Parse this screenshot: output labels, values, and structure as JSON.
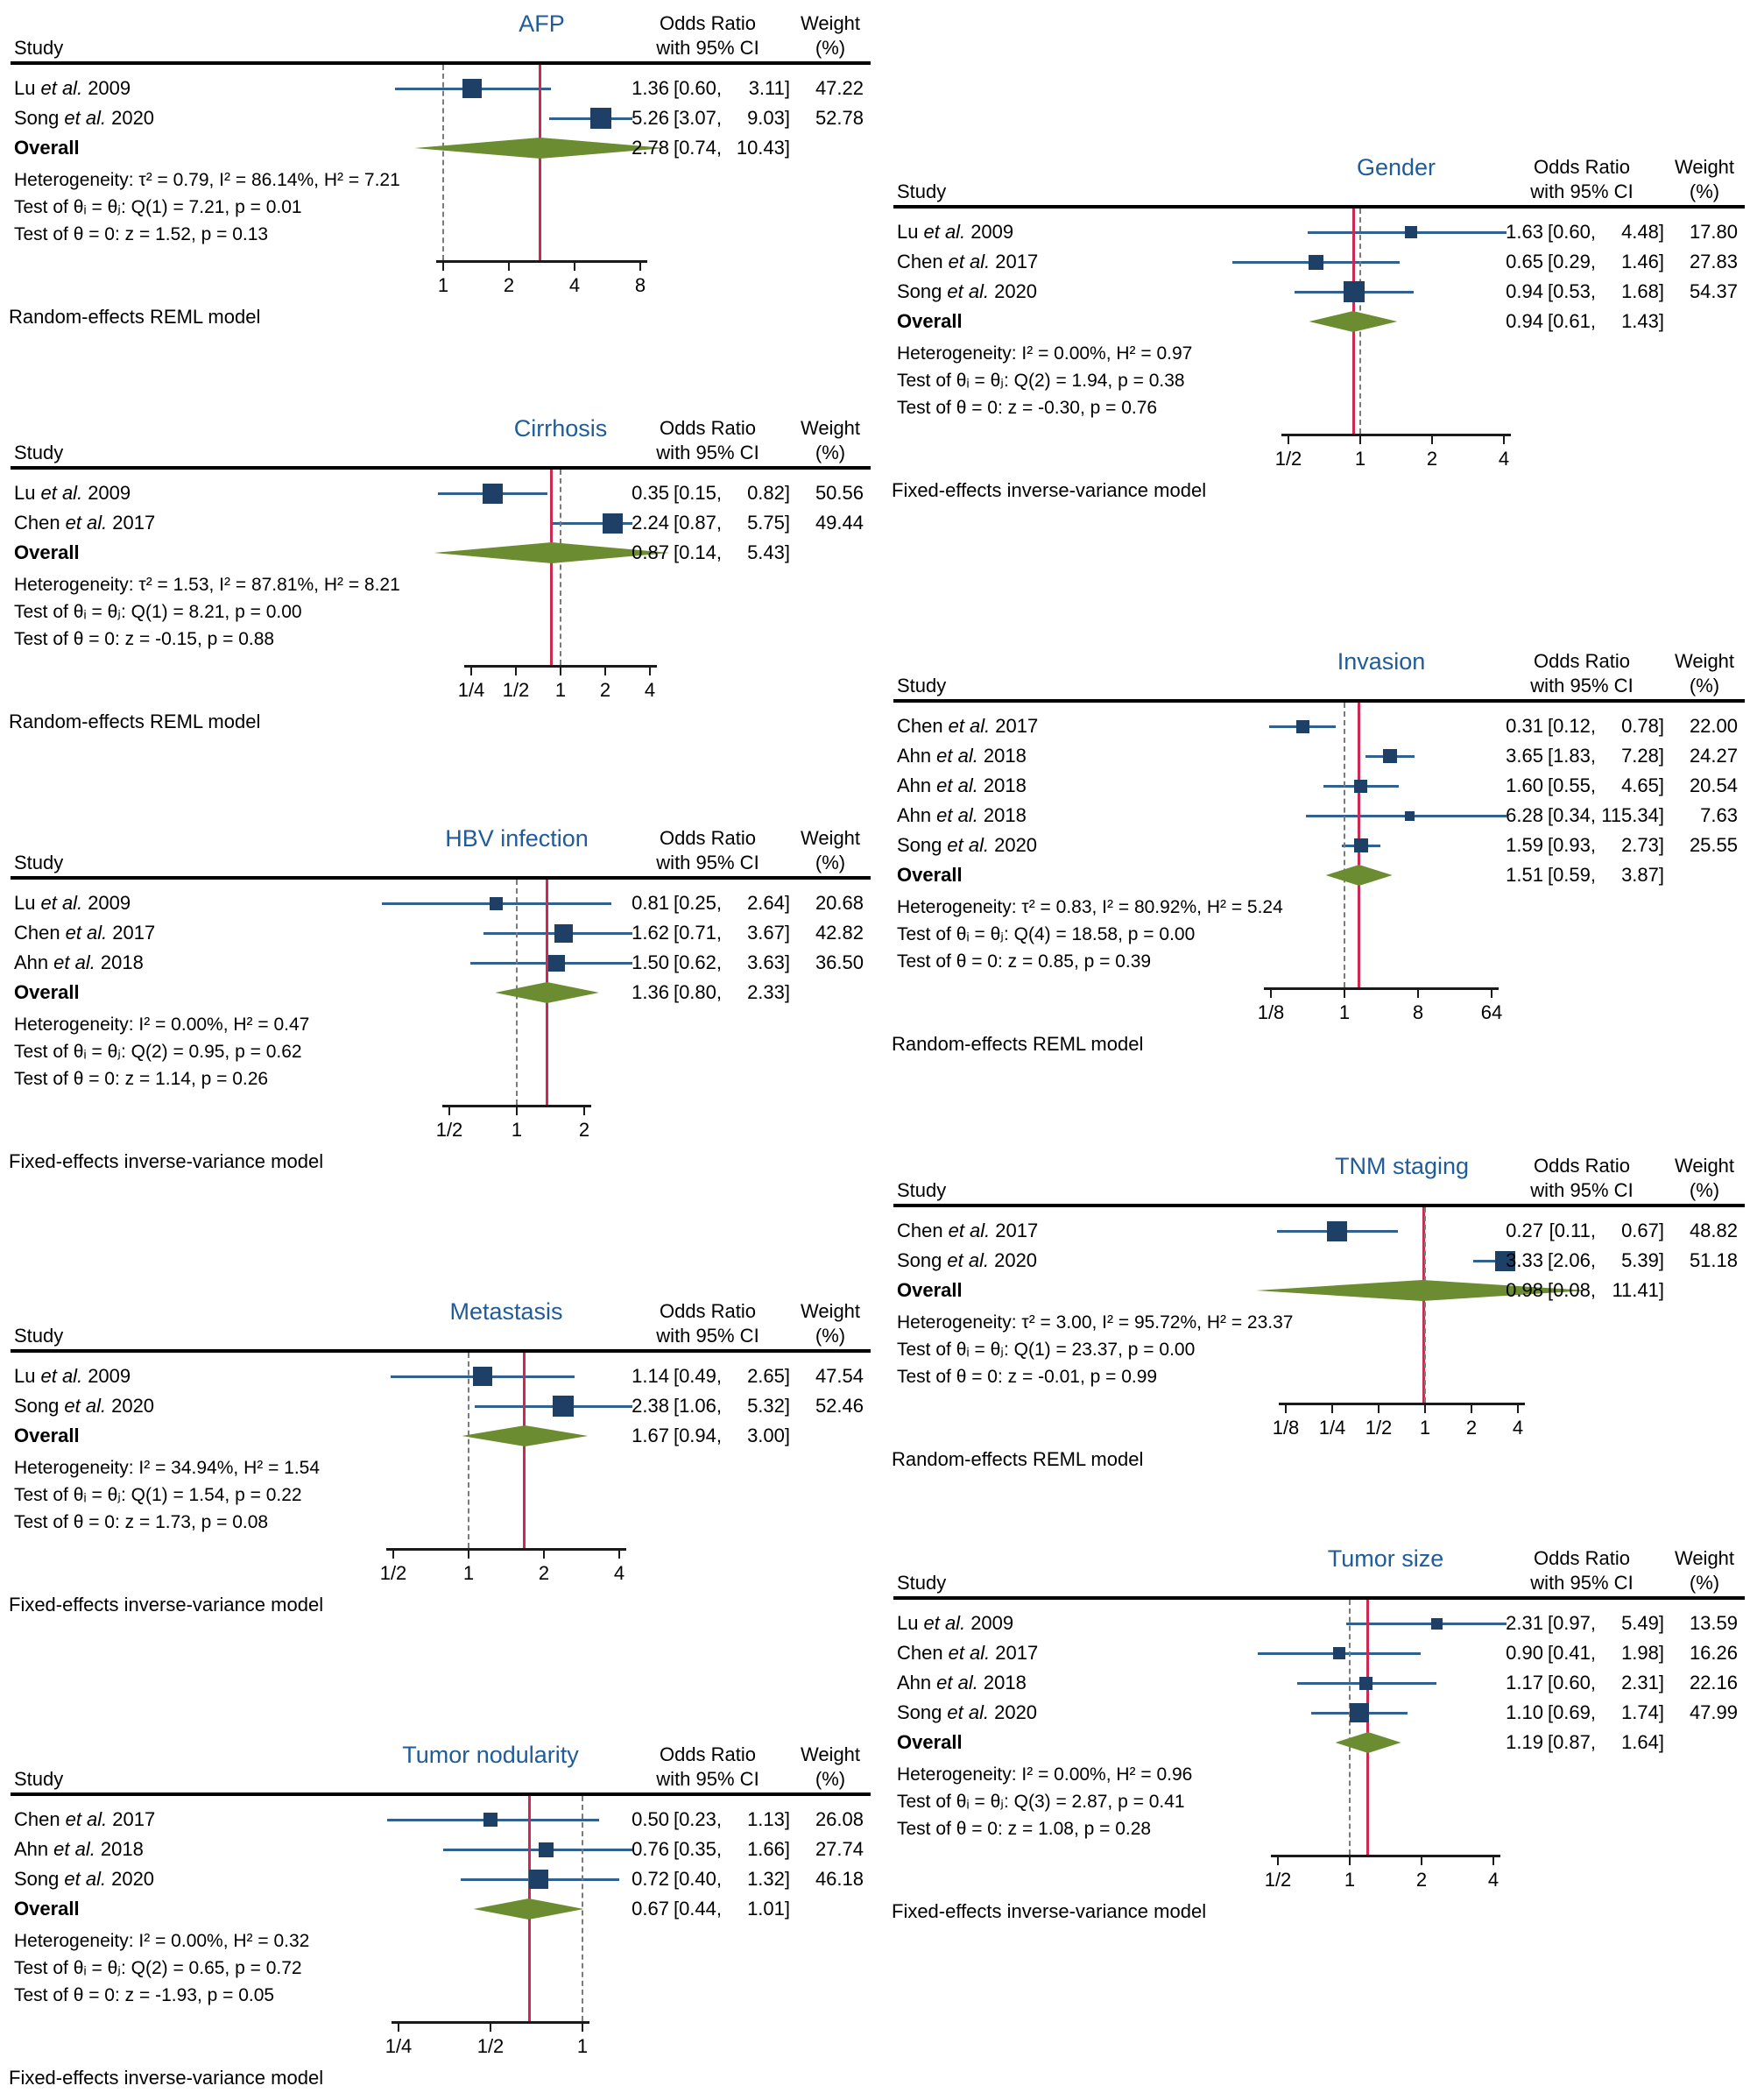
{
  "figure": {
    "description": "Forest plots of meta-analysis results for nine clinicopathological factors",
    "background": "#ffffff"
  },
  "colors": {
    "title": "#1f5c99",
    "marker": "#1e4066",
    "ci_line": "#31618f",
    "diamond": "#6b8c31",
    "effect_line": "#cc2a52",
    "null_line": "#7b7b7b",
    "text": "#000000"
  },
  "labels": {
    "study_header": "Study",
    "etal": "et al.",
    "or_header1": "Odds Ratio",
    "or_header2": "with 95% CI",
    "weight_header1": "Weight",
    "weight_header2": "(%)"
  },
  "chart_data": [
    {
      "id": "afp",
      "type": "forest",
      "title": "AFP",
      "model": "Random-effects REML model",
      "effect": 2.78,
      "axis": {
        "scale": "log",
        "ticks": [
          {
            "label": "1",
            "v": 1
          },
          {
            "label": "2",
            "v": 2
          },
          {
            "label": "4",
            "v": 4
          },
          {
            "label": "8",
            "v": 8
          }
        ]
      },
      "studies": [
        {
          "author": "Lu",
          "year": "2009",
          "or_v": 1.36,
          "lo_v": 0.6,
          "hi_v": 3.11,
          "or": "1.36",
          "lo": "[0.60,",
          "hi": "3.11]",
          "weight": "47.22"
        },
        {
          "author": "Song",
          "year": "2020",
          "or_v": 5.26,
          "lo_v": 3.07,
          "hi_v": 9.03,
          "or": "5.26",
          "lo": "[3.07,",
          "hi": "9.03]",
          "weight": "52.78"
        }
      ],
      "overall": {
        "label": "Overall",
        "or_v": 2.78,
        "lo_v": 0.74,
        "hi_v": 10.43,
        "or": "2.78",
        "lo": "[0.74,",
        "hi": "10.43]"
      },
      "stats": [
        "Heterogeneity: τ² = 0.79, I² = 86.14%, H² = 7.21",
        "Test of θᵢ = θⱼ: Q(1) = 7.21, p = 0.01",
        "Test of θ = 0: z = 1.52, p = 0.13"
      ]
    },
    {
      "id": "cirrhosis",
      "type": "forest",
      "title": "Cirrhosis",
      "model": "Random-effects REML model",
      "effect": 0.87,
      "axis": {
        "scale": "log",
        "ticks": [
          {
            "label": "1/4",
            "v": 0.25
          },
          {
            "label": "1/2",
            "v": 0.5
          },
          {
            "label": "1",
            "v": 1
          },
          {
            "label": "2",
            "v": 2
          },
          {
            "label": "4",
            "v": 4
          }
        ]
      },
      "studies": [
        {
          "author": "Lu",
          "year": "2009",
          "or_v": 0.35,
          "lo_v": 0.15,
          "hi_v": 0.82,
          "or": "0.35",
          "lo": "[0.15,",
          "hi": "0.82]",
          "weight": "50.56"
        },
        {
          "author": "Chen",
          "year": "2017",
          "or_v": 2.24,
          "lo_v": 0.87,
          "hi_v": 5.75,
          "or": "2.24",
          "lo": "[0.87,",
          "hi": "5.75]",
          "weight": "49.44"
        }
      ],
      "overall": {
        "label": "Overall",
        "or_v": 0.87,
        "lo_v": 0.14,
        "hi_v": 5.43,
        "or": "0.87",
        "lo": "[0.14,",
        "hi": "5.43]"
      },
      "stats": [
        "Heterogeneity: τ² = 1.53, I² = 87.81%, H² = 8.21",
        "Test of θᵢ = θⱼ: Q(1) = 8.21, p = 0.00",
        "Test of θ = 0: z = -0.15, p = 0.88"
      ]
    },
    {
      "id": "hbv",
      "type": "forest",
      "title": "HBV infection",
      "model": "Fixed-effects inverse-variance model",
      "effect": 1.36,
      "axis": {
        "scale": "log",
        "ticks": [
          {
            "label": "1/2",
            "v": 0.5
          },
          {
            "label": "1",
            "v": 1
          },
          {
            "label": "2",
            "v": 2
          }
        ]
      },
      "studies": [
        {
          "author": "Lu",
          "year": "2009",
          "or_v": 0.81,
          "lo_v": 0.25,
          "hi_v": 2.64,
          "or": "0.81",
          "lo": "[0.25,",
          "hi": "2.64]",
          "weight": "20.68"
        },
        {
          "author": "Chen",
          "year": "2017",
          "or_v": 1.62,
          "lo_v": 0.71,
          "hi_v": 3.67,
          "or": "1.62",
          "lo": "[0.71,",
          "hi": "3.67]",
          "weight": "42.82"
        },
        {
          "author": "Ahn",
          "year": "2018",
          "or_v": 1.5,
          "lo_v": 0.62,
          "hi_v": 3.63,
          "or": "1.50",
          "lo": "[0.62,",
          "hi": "3.63]",
          "weight": "36.50"
        }
      ],
      "overall": {
        "label": "Overall",
        "or_v": 1.36,
        "lo_v": 0.8,
        "hi_v": 2.33,
        "or": "1.36",
        "lo": "[0.80,",
        "hi": "2.33]"
      },
      "stats": [
        "Heterogeneity: I² = 0.00%, H² = 0.47",
        "Test of θᵢ = θⱼ: Q(2) = 0.95, p = 0.62",
        "Test of θ = 0: z = 1.14, p = 0.26"
      ]
    },
    {
      "id": "metastasis",
      "type": "forest",
      "title": "Metastasis",
      "model": "Fixed-effects inverse-variance model",
      "effect": 1.67,
      "axis": {
        "scale": "log",
        "ticks": [
          {
            "label": "1/2",
            "v": 0.5
          },
          {
            "label": "1",
            "v": 1
          },
          {
            "label": "2",
            "v": 2
          },
          {
            "label": "4",
            "v": 4
          }
        ]
      },
      "studies": [
        {
          "author": "Lu",
          "year": "2009",
          "or_v": 1.14,
          "lo_v": 0.49,
          "hi_v": 2.65,
          "or": "1.14",
          "lo": "[0.49,",
          "hi": "2.65]",
          "weight": "47.54"
        },
        {
          "author": "Song",
          "year": "2020",
          "or_v": 2.38,
          "lo_v": 1.06,
          "hi_v": 5.32,
          "or": "2.38",
          "lo": "[1.06,",
          "hi": "5.32]",
          "weight": "52.46"
        }
      ],
      "overall": {
        "label": "Overall",
        "or_v": 1.67,
        "lo_v": 0.94,
        "hi_v": 3.0,
        "or": "1.67",
        "lo": "[0.94,",
        "hi": "3.00]"
      },
      "stats": [
        "Heterogeneity: I² = 34.94%, H² = 1.54",
        "Test of θᵢ = θⱼ: Q(1) = 1.54, p = 0.22",
        "Test of θ = 0: z = 1.73, p = 0.08"
      ]
    },
    {
      "id": "nodularity",
      "type": "forest",
      "title": "Tumor nodularity",
      "model": "Fixed-effects inverse-variance model",
      "effect": 0.67,
      "axis": {
        "scale": "log",
        "ticks": [
          {
            "label": "1/4",
            "v": 0.25
          },
          {
            "label": "1/2",
            "v": 0.5
          },
          {
            "label": "1",
            "v": 1
          }
        ]
      },
      "studies": [
        {
          "author": "Chen",
          "year": "2017",
          "or_v": 0.5,
          "lo_v": 0.23,
          "hi_v": 1.13,
          "or": "0.50",
          "lo": "[0.23,",
          "hi": "1.13]",
          "weight": "26.08"
        },
        {
          "author": "Ahn",
          "year": "2018",
          "or_v": 0.76,
          "lo_v": 0.35,
          "hi_v": 1.66,
          "or": "0.76",
          "lo": "[0.35,",
          "hi": "1.66]",
          "weight": "27.74"
        },
        {
          "author": "Song",
          "year": "2020",
          "or_v": 0.72,
          "lo_v": 0.4,
          "hi_v": 1.32,
          "or": "0.72",
          "lo": "[0.40,",
          "hi": "1.32]",
          "weight": "46.18"
        }
      ],
      "overall": {
        "label": "Overall",
        "or_v": 0.67,
        "lo_v": 0.44,
        "hi_v": 1.01,
        "or": "0.67",
        "lo": "[0.44,",
        "hi": "1.01]"
      },
      "stats": [
        "Heterogeneity: I² = 0.00%, H² = 0.32",
        "Test of θᵢ = θⱼ: Q(2) = 0.65, p = 0.72",
        "Test of θ = 0: z = -1.93, p = 0.05"
      ]
    },
    {
      "id": "gender",
      "type": "forest",
      "title": "Gender",
      "model": "Fixed-effects inverse-variance model",
      "effect": 0.94,
      "axis": {
        "scale": "log",
        "ticks": [
          {
            "label": "1/2",
            "v": 0.5
          },
          {
            "label": "1",
            "v": 1
          },
          {
            "label": "2",
            "v": 2
          },
          {
            "label": "4",
            "v": 4
          }
        ]
      },
      "studies": [
        {
          "author": "Lu",
          "year": "2009",
          "or_v": 1.63,
          "lo_v": 0.6,
          "hi_v": 4.48,
          "or": "1.63",
          "lo": "[0.60,",
          "hi": "4.48]",
          "weight": "17.80"
        },
        {
          "author": "Chen",
          "year": "2017",
          "or_v": 0.65,
          "lo_v": 0.29,
          "hi_v": 1.46,
          "or": "0.65",
          "lo": "[0.29,",
          "hi": "1.46]",
          "weight": "27.83"
        },
        {
          "author": "Song",
          "year": "2020",
          "or_v": 0.94,
          "lo_v": 0.53,
          "hi_v": 1.68,
          "or": "0.94",
          "lo": "[0.53,",
          "hi": "1.68]",
          "weight": "54.37"
        }
      ],
      "overall": {
        "label": "Overall",
        "or_v": 0.94,
        "lo_v": 0.61,
        "hi_v": 1.43,
        "or": "0.94",
        "lo": "[0.61,",
        "hi": "1.43]"
      },
      "stats": [
        "Heterogeneity: I² = 0.00%, H² = 0.97",
        "Test of θᵢ = θⱼ: Q(2) = 1.94, p = 0.38",
        "Test of θ = 0: z = -0.30, p = 0.76"
      ]
    },
    {
      "id": "invasion",
      "type": "forest",
      "title": "Invasion",
      "model": "Random-effects REML model",
      "effect": 1.51,
      "axis": {
        "scale": "log",
        "ticks": [
          {
            "label": "1/8",
            "v": 0.125
          },
          {
            "label": "1",
            "v": 1
          },
          {
            "label": "8",
            "v": 8
          },
          {
            "label": "64",
            "v": 64
          }
        ]
      },
      "studies": [
        {
          "author": "Chen",
          "year": "2017",
          "or_v": 0.31,
          "lo_v": 0.12,
          "hi_v": 0.78,
          "or": "0.31",
          "lo": "[0.12,",
          "hi": "0.78]",
          "weight": "22.00"
        },
        {
          "author": "Ahn",
          "year": "2018",
          "or_v": 3.65,
          "lo_v": 1.83,
          "hi_v": 7.28,
          "or": "3.65",
          "lo": "[1.83,",
          "hi": "7.28]",
          "weight": "24.27"
        },
        {
          "author": "Ahn",
          "year": "2018",
          "or_v": 1.6,
          "lo_v": 0.55,
          "hi_v": 4.65,
          "or": "1.60",
          "lo": "[0.55,",
          "hi": "4.65]",
          "weight": "20.54"
        },
        {
          "author": "Ahn",
          "year": "2018",
          "or_v": 6.28,
          "lo_v": 0.34,
          "hi_v": 115.34,
          "or": "6.28",
          "lo": "[0.34,",
          "hi": "115.34]",
          "weight": "7.63"
        },
        {
          "author": "Song",
          "year": "2020",
          "or_v": 1.59,
          "lo_v": 0.93,
          "hi_v": 2.73,
          "or": "1.59",
          "lo": "[0.93,",
          "hi": "2.73]",
          "weight": "25.55"
        }
      ],
      "overall": {
        "label": "Overall",
        "or_v": 1.51,
        "lo_v": 0.59,
        "hi_v": 3.87,
        "or": "1.51",
        "lo": "[0.59,",
        "hi": "3.87]"
      },
      "stats": [
        "Heterogeneity: τ² = 0.83, I² = 80.92%, H² = 5.24",
        "Test of θᵢ = θⱼ: Q(4) = 18.58, p = 0.00",
        "Test of θ = 0: z = 0.85, p = 0.39"
      ]
    },
    {
      "id": "tnm",
      "type": "forest",
      "title": "TNM staging",
      "model": "Random-effects REML model",
      "effect": 0.98,
      "axis": {
        "scale": "log",
        "ticks": [
          {
            "label": "1/8",
            "v": 0.125
          },
          {
            "label": "1/4",
            "v": 0.25
          },
          {
            "label": "1/2",
            "v": 0.5
          },
          {
            "label": "1",
            "v": 1
          },
          {
            "label": "2",
            "v": 2
          },
          {
            "label": "4",
            "v": 4
          }
        ]
      },
      "studies": [
        {
          "author": "Chen",
          "year": "2017",
          "or_v": 0.27,
          "lo_v": 0.11,
          "hi_v": 0.67,
          "or": "0.27",
          "lo": "[0.11,",
          "hi": "0.67]",
          "weight": "48.82"
        },
        {
          "author": "Song",
          "year": "2020",
          "or_v": 3.33,
          "lo_v": 2.06,
          "hi_v": 5.39,
          "or": "3.33",
          "lo": "[2.06,",
          "hi": "5.39]",
          "weight": "51.18"
        }
      ],
      "overall": {
        "label": "Overall",
        "or_v": 0.98,
        "lo_v": 0.08,
        "hi_v": 11.41,
        "or": "0.98",
        "lo": "[0.08,",
        "hi": "11.41]"
      },
      "stats": [
        "Heterogeneity: τ² = 3.00, I² = 95.72%, H² = 23.37",
        "Test of θᵢ = θⱼ: Q(1) = 23.37, p = 0.00",
        "Test of θ = 0: z = -0.01, p = 0.99"
      ]
    },
    {
      "id": "tumorsize",
      "type": "forest",
      "title": "Tumor size",
      "model": "Fixed-effects inverse-variance model",
      "effect": 1.19,
      "axis": {
        "scale": "log",
        "ticks": [
          {
            "label": "1/2",
            "v": 0.5
          },
          {
            "label": "1",
            "v": 1
          },
          {
            "label": "2",
            "v": 2
          },
          {
            "label": "4",
            "v": 4
          }
        ]
      },
      "studies": [
        {
          "author": "Lu",
          "year": "2009",
          "or_v": 2.31,
          "lo_v": 0.97,
          "hi_v": 5.49,
          "or": "2.31",
          "lo": "[0.97,",
          "hi": "5.49]",
          "weight": "13.59"
        },
        {
          "author": "Chen",
          "year": "2017",
          "or_v": 0.9,
          "lo_v": 0.41,
          "hi_v": 1.98,
          "or": "0.90",
          "lo": "[0.41,",
          "hi": "1.98]",
          "weight": "16.26"
        },
        {
          "author": "Ahn",
          "year": "2018",
          "or_v": 1.17,
          "lo_v": 0.6,
          "hi_v": 2.31,
          "or": "1.17",
          "lo": "[0.60,",
          "hi": "2.31]",
          "weight": "22.16"
        },
        {
          "author": "Song",
          "year": "2020",
          "or_v": 1.1,
          "lo_v": 0.69,
          "hi_v": 1.74,
          "or": "1.10",
          "lo": "[0.69,",
          "hi": "1.74]",
          "weight": "47.99"
        }
      ],
      "overall": {
        "label": "Overall",
        "or_v": 1.19,
        "lo_v": 0.87,
        "hi_v": 1.64,
        "or": "1.19",
        "lo": "[0.87,",
        "hi": "1.64]"
      },
      "stats": [
        "Heterogeneity: I² = 0.00%, H² = 0.96",
        "Test of θᵢ = θⱼ: Q(3) = 2.87, p = 0.41",
        "Test of θ = 0: z = 1.08, p = 0.28"
      ]
    }
  ]
}
